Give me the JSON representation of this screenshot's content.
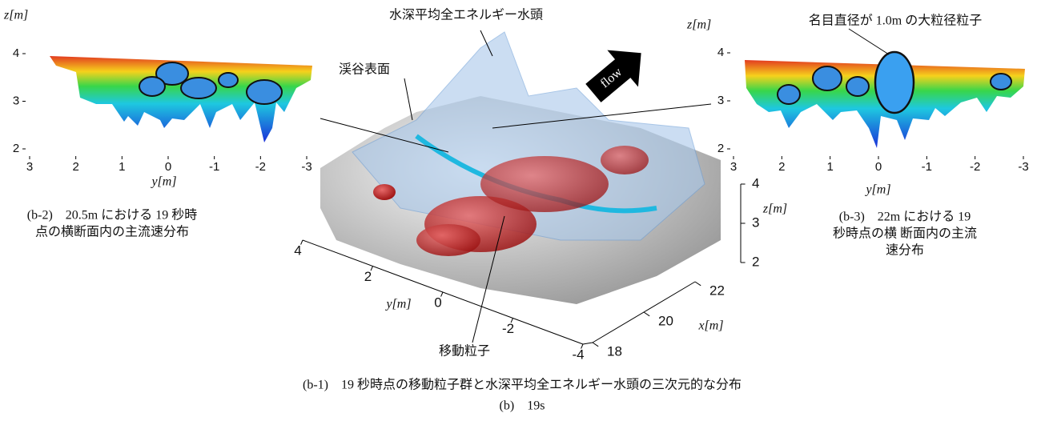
{
  "panels": [
    {
      "z_label": "z[m]",
      "y_label": "y[m]",
      "zticks": [
        2,
        3,
        4
      ],
      "yticks": [
        3,
        2,
        1,
        0,
        -1,
        -2,
        -3
      ],
      "caption": [
        "(b-2)　20.5m における 19 秒時",
        "点の横断面内の主流速分布"
      ]
    },
    {
      "z_label": "z[m]",
      "y_label": "y[m]",
      "zticks": [
        2,
        3,
        4
      ],
      "yticks": [
        3,
        2,
        1,
        0,
        -1,
        -2,
        -3
      ],
      "caption": [
        "(b-3)　22m における 19",
        "秒時点の横 断面内の主流",
        "速分布"
      ],
      "annotation": "名目直径が 1.0m の大粒径粒子"
    }
  ],
  "center": {
    "annotations": {
      "energy_head": "水深平均全エネルギー水頭",
      "valley_surface": "渓谷表面",
      "flow": "flow",
      "moving_particles": "移動粒子"
    },
    "y_label": "y[m]",
    "yticks": [
      4,
      2,
      0,
      -2,
      -4
    ],
    "x_label": "x[m]",
    "xticks": [
      18,
      20,
      22
    ],
    "z_label": "z[m]",
    "zticks": [
      2,
      3,
      4
    ]
  },
  "captions": {
    "main": "(b-1)　19 秒時点の移動粒子群と水深平均全エネルギー水頭の三次元的な分布",
    "figure": "(b)　19s"
  }
}
